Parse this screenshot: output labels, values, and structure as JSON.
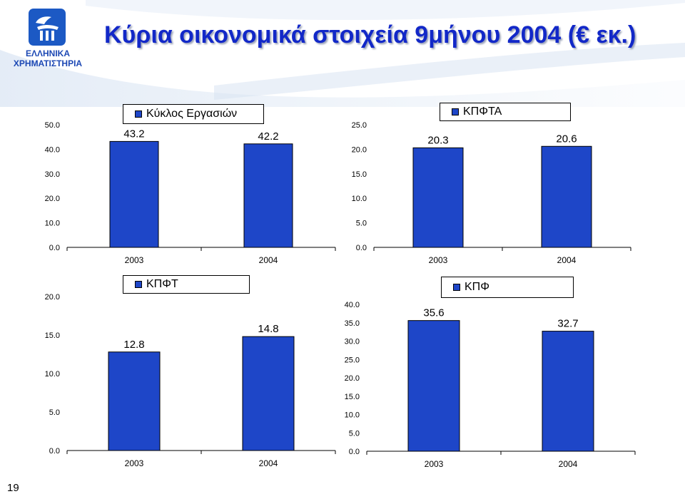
{
  "header": {
    "title": "Κύρια οικονομικά στοιχεία 9μήνου 2004 (€ εκ.)",
    "logo_line1": "ΕΛΛΗΝΙΚΑ",
    "logo_line2": "ΧΡΗΜΑΤΙΣΤΗΡΙΑ"
  },
  "page_number": "19",
  "colors": {
    "bar": "#1e46c8",
    "title": "#1228c8",
    "logo": "#1c59c4"
  },
  "chart_data": [
    {
      "type": "bar",
      "legend": "Κύκλος Εργασιών",
      "categories": [
        "2003",
        "2004"
      ],
      "values": [
        43.2,
        42.2
      ],
      "value_labels": [
        "43.2",
        "42.2"
      ],
      "ylim": [
        0,
        50
      ],
      "yticks": [
        "0.0",
        "10.0",
        "20.0",
        "30.0",
        "40.0",
        "50.0"
      ],
      "grid": false,
      "legend_position": "top"
    },
    {
      "type": "bar",
      "legend": "ΚΠΦΤΑ",
      "categories": [
        "2003",
        "2004"
      ],
      "values": [
        20.3,
        20.6
      ],
      "value_labels": [
        "20.3",
        "20.6"
      ],
      "ylim": [
        0,
        25
      ],
      "yticks": [
        "0.0",
        "5.0",
        "10.0",
        "15.0",
        "20.0",
        "25.0"
      ],
      "grid": false,
      "legend_position": "top"
    },
    {
      "type": "bar",
      "legend": "ΚΠΦΤ",
      "categories": [
        "2003",
        "2004"
      ],
      "values": [
        12.8,
        14.8
      ],
      "value_labels": [
        "12.8",
        "14.8"
      ],
      "ylim": [
        0,
        20
      ],
      "yticks": [
        "0.0",
        "5.0",
        "10.0",
        "15.0",
        "20.0"
      ],
      "grid": false,
      "legend_position": "top"
    },
    {
      "type": "bar",
      "legend": "ΚΠΦ",
      "categories": [
        "2003",
        "2004"
      ],
      "values": [
        35.6,
        32.7
      ],
      "value_labels": [
        "35.6",
        "32.7"
      ],
      "ylim": [
        0,
        40
      ],
      "yticks": [
        "0.0",
        "5.0",
        "10.0",
        "15.0",
        "20.0",
        "25.0",
        "30.0",
        "35.0",
        "40.0"
      ],
      "grid": false,
      "legend_position": "top"
    }
  ]
}
